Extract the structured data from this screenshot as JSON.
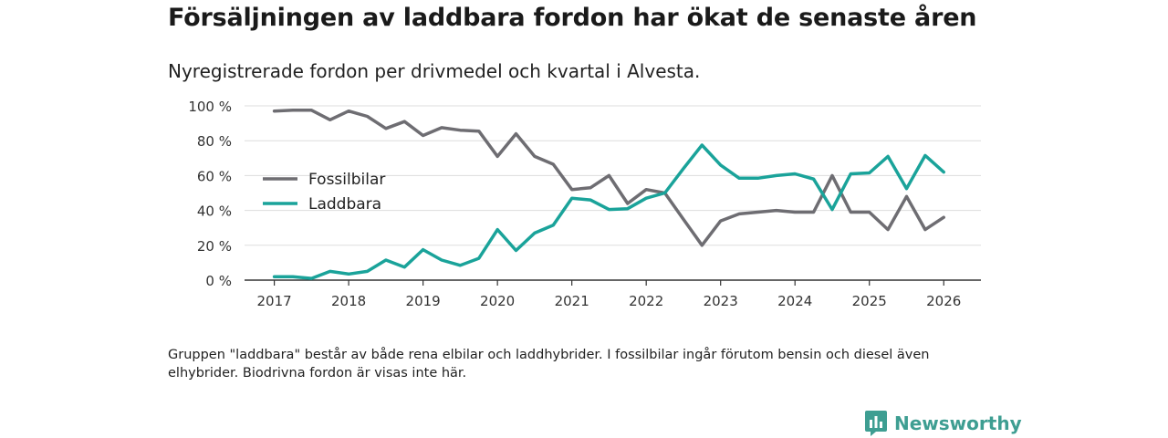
{
  "title": "Försäljningen av laddbara fordon har ökat de senaste åren",
  "subtitle": "Nyregistrerade fordon per drivmedel och kvartal i Alvesta.",
  "footnote": "Gruppen \"laddbara\" består av både rena elbilar och laddhybrider. I fossilbilar ingår förutom bensin och diesel även elhybrider. Biodrivna fordon är visas inte här.",
  "brand": "Newsworthy",
  "colors": {
    "fossil": "#6e6d72",
    "laddbara": "#1aa39a",
    "grid": "#dddddd",
    "axis": "#333333",
    "brand": "#3e9e92"
  },
  "chart_data": {
    "type": "line",
    "title": "Försäljningen av laddbara fordon har ökat de senaste åren",
    "xlabel": "",
    "ylabel": "",
    "x_ticks": [
      2017,
      2018,
      2019,
      2020,
      2021,
      2022,
      2023,
      2024,
      2025,
      2026
    ],
    "x_range": [
      2016.6,
      2026.5
    ],
    "ylim": [
      0,
      100
    ],
    "y_ticks": [
      0,
      20,
      40,
      60,
      80,
      100
    ],
    "y_tick_labels": [
      "0 %",
      "20 %",
      "40 %",
      "60 %",
      "80 %",
      "100 %"
    ],
    "grid": true,
    "legend_position": "center-left",
    "x": [
      2017.0,
      2017.25,
      2017.5,
      2017.75,
      2018.0,
      2018.25,
      2018.5,
      2018.75,
      2019.0,
      2019.25,
      2019.5,
      2019.75,
      2020.0,
      2020.25,
      2020.5,
      2020.75,
      2021.0,
      2021.25,
      2021.5,
      2021.75,
      2022.0,
      2022.25,
      2022.5,
      2022.75,
      2023.0,
      2023.25,
      2023.5,
      2023.75,
      2024.0,
      2024.25,
      2024.5,
      2024.75,
      2025.0,
      2025.25,
      2025.5,
      2025.75,
      2026.0
    ],
    "series": [
      {
        "name": "Fossilbilar",
        "color": "#6e6d72",
        "values": [
          97,
          97.5,
          97.5,
          92,
          97,
          94,
          87,
          91,
          83,
          87.5,
          86,
          85.5,
          71,
          84,
          71,
          66.5,
          52,
          53,
          60,
          44,
          52,
          50,
          35,
          20,
          34,
          38,
          39,
          40,
          39,
          39,
          60,
          39,
          39,
          29,
          48,
          29,
          36
        ]
      },
      {
        "name": "Laddbara",
        "color": "#1aa39a",
        "values": [
          2,
          2,
          1,
          5,
          3.5,
          5,
          11.5,
          7.5,
          17.5,
          11.5,
          8.5,
          12.5,
          29,
          17,
          27,
          31.5,
          47,
          46,
          40.5,
          41,
          47,
          50,
          64,
          77.5,
          66,
          58.5,
          58.5,
          60,
          61,
          58,
          40.5,
          61,
          61.5,
          71,
          52.5,
          71.5,
          62
        ]
      }
    ]
  }
}
